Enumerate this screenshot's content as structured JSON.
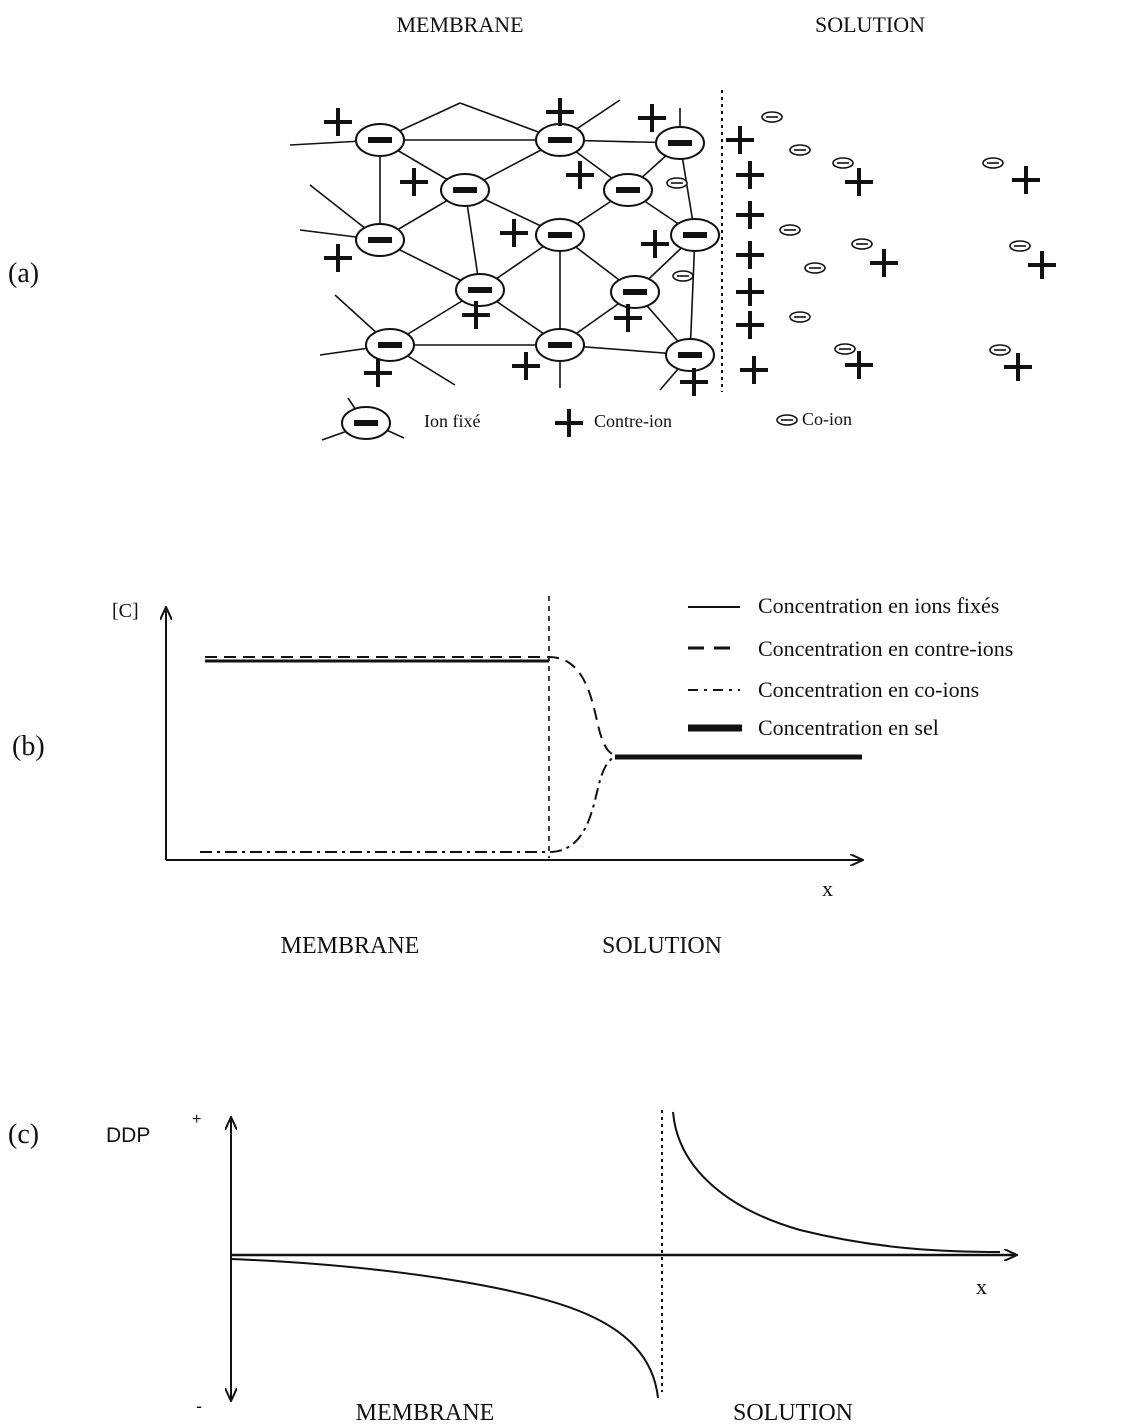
{
  "panel_a": {
    "label": "(a)",
    "header_membrane": "MEMBRANE",
    "header_solution": "SOLUTION",
    "legend": {
      "fixed_ion": "Ion fixé",
      "counter_ion": "Contre-ion",
      "co_ion": "Co-ion"
    }
  },
  "panel_b": {
    "label": "(b)",
    "y_axis_label": "[C]",
    "x_axis_label": "x",
    "region_membrane": "MEMBRANE",
    "region_solution": "SOLUTION",
    "legend": [
      "Concentration en ions fixés",
      "Concentration en contre-ions",
      "Concentration en co-ions",
      "Concentration en sel"
    ]
  },
  "panel_c": {
    "label": "(c)",
    "y_axis_label": "DDP",
    "plus_sign": "+",
    "minus_sign": "-",
    "x_axis_label": "x",
    "region_membrane": "MEMBRANE",
    "region_solution": "SOLUTION"
  },
  "colors": {
    "ink": "#111111",
    "background": "#ffffff"
  }
}
